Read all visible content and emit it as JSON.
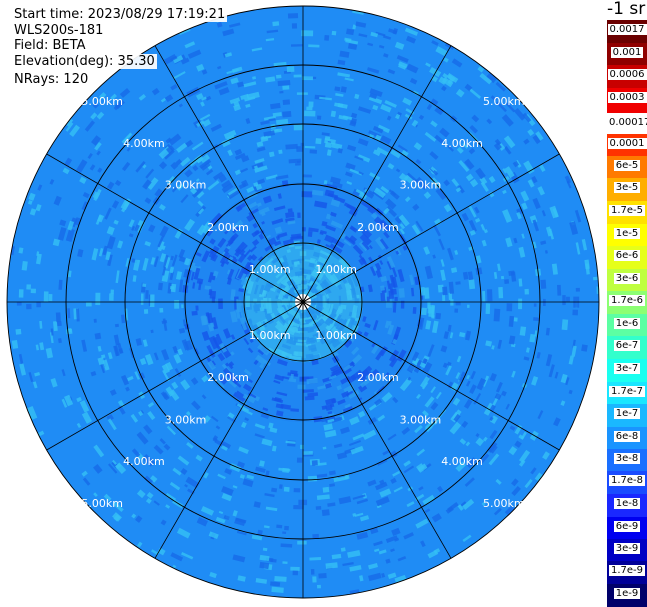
{
  "info": {
    "start_time": "Start time: 2023/08/29 17:19:21",
    "station": "WLS200s-181",
    "field": "Field: BETA",
    "elevation": "Elevation(deg): 35.30",
    "nrays": "NRays: 120"
  },
  "rings": {
    "labels": [
      "1.00km",
      "2.00km",
      "3.00km",
      "4.00km",
      "5.00km"
    ]
  },
  "colorbar": {
    "unit": "-1 sr",
    "entries": [
      {
        "label": "0.0017",
        "color": "#6b0000"
      },
      {
        "label": "0.001",
        "color": "#8f0000"
      },
      {
        "label": "0.0006",
        "color": "#c80000"
      },
      {
        "label": "0.0003",
        "color": "#f00000"
      },
      {
        "label": "0.00017",
        "color": "#ffffff"
      },
      {
        "label": "0.0001",
        "color": "#ff3300"
      },
      {
        "label": "6e-5",
        "color": "#ff7a00"
      },
      {
        "label": "3e-5",
        "color": "#ffae00"
      },
      {
        "label": "1.7e-5",
        "color": "#ffe100"
      },
      {
        "label": "1e-5",
        "color": "#ffff00"
      },
      {
        "label": "6e-6",
        "color": "#e6ff1a"
      },
      {
        "label": "3e-6",
        "color": "#bfff40"
      },
      {
        "label": "1.7e-6",
        "color": "#8cff73"
      },
      {
        "label": "1e-6",
        "color": "#5cffa3"
      },
      {
        "label": "6e-7",
        "color": "#33ffcc"
      },
      {
        "label": "3e-7",
        "color": "#1afff0"
      },
      {
        "label": "1.7e-7",
        "color": "#1ae6ff"
      },
      {
        "label": "1e-7",
        "color": "#1ab8ff"
      },
      {
        "label": "6e-8",
        "color": "#1a94ff"
      },
      {
        "label": "3e-8",
        "color": "#1a70ff"
      },
      {
        "label": "1.7e-8",
        "color": "#1a4cff"
      },
      {
        "label": "1e-8",
        "color": "#1a28ff"
      },
      {
        "label": "6e-9",
        "color": "#0000f0"
      },
      {
        "label": "3e-9",
        "color": "#0000c4"
      },
      {
        "label": "1.7e-9",
        "color": "#000098"
      },
      {
        "label": "1e-9",
        "color": "#00006a"
      }
    ]
  },
  "palette": {
    "ring_inner": "#2ea8f0",
    "ring_mid": "#1f86f2",
    "ring_outer": "#1f8cf5",
    "speckle_dark": "#1555e8",
    "speckle_light": "#34c0f5",
    "grid": "#000000"
  }
}
